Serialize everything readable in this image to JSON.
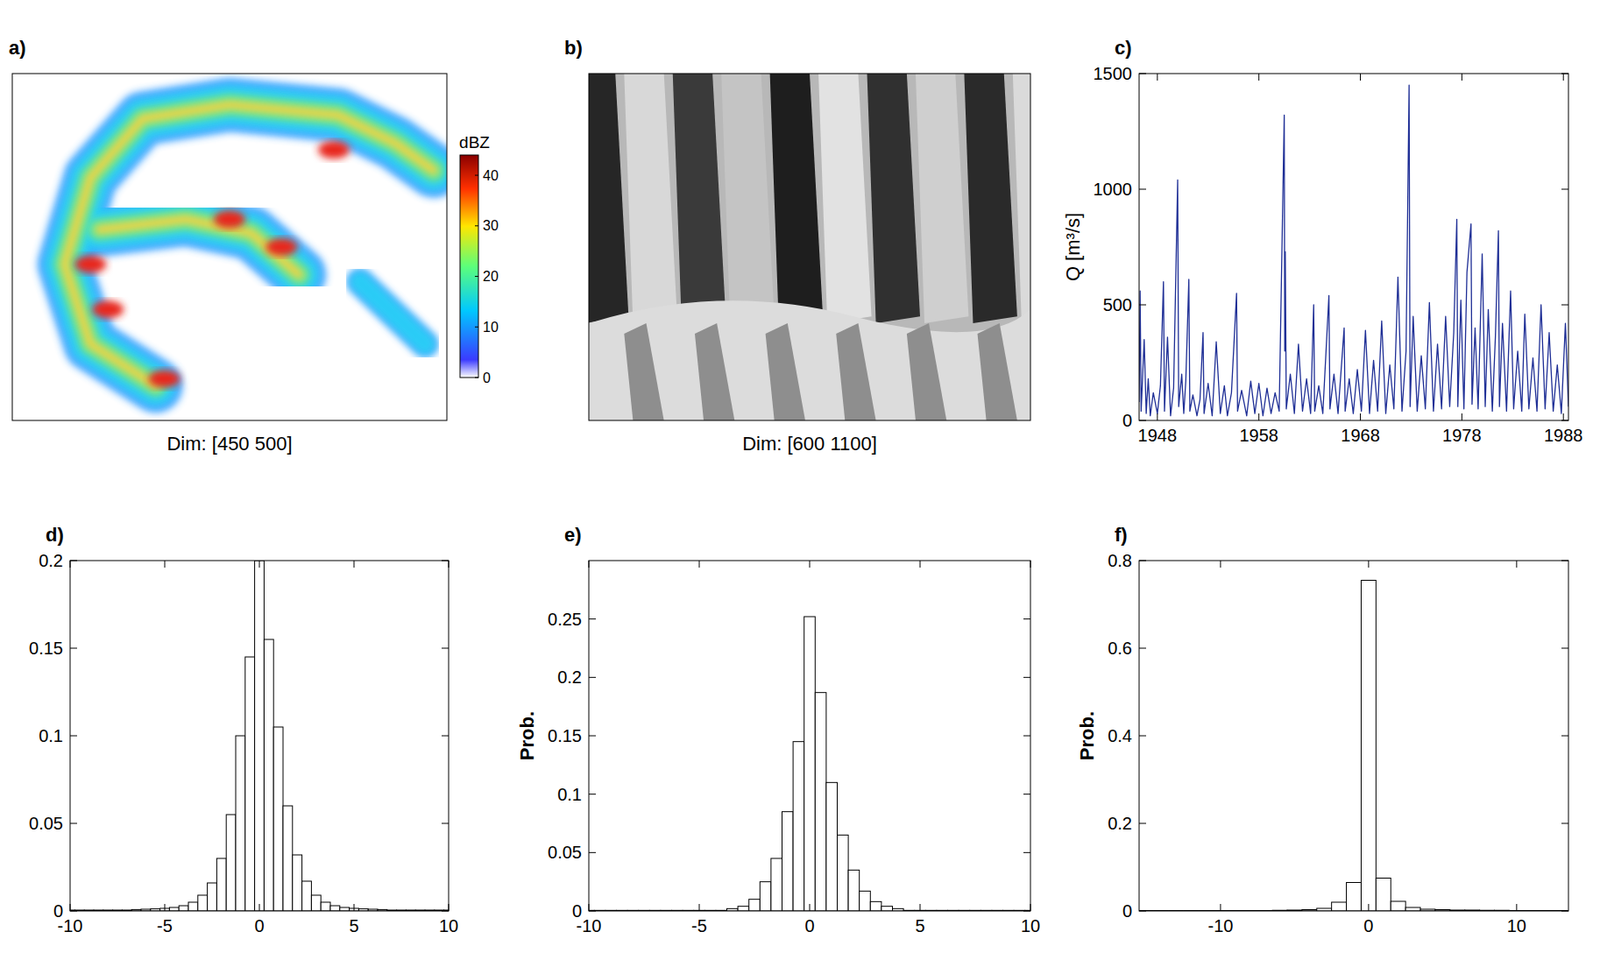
{
  "chart_data": [
    {
      "type": "image",
      "title": "a)",
      "xlabel": "Dim: [450 500]",
      "tick_labels": false,
      "colorbar_label": "dBZ",
      "colorbar_lim": [
        0,
        44
      ],
      "colorbar_ticks": [
        0,
        10,
        20,
        30,
        40
      ]
    },
    {
      "type": "image",
      "title": "b)",
      "xlabel": "Dim: [600 1100]",
      "tick_labels": false
    },
    {
      "type": "line",
      "title": "c)",
      "ylabel": "Q [m³/s]",
      "color": "#1f2f96",
      "x": [
        1946.2,
        1946.3,
        1946.4,
        1946.7,
        1946.9,
        1947.1,
        1947.3,
        1947.6,
        1948.0,
        1948.3,
        1948.6,
        1948.7,
        1949.0,
        1949.3,
        1949.6,
        1950.0,
        1950.1,
        1950.4,
        1950.6,
        1950.8,
        1951.1,
        1951.2,
        1951.5,
        1951.9,
        1952.2,
        1952.5,
        1952.6,
        1953.0,
        1953.4,
        1953.8,
        1954.2,
        1954.6,
        1954.9,
        1955.3,
        1955.8,
        1955.9,
        1956.3,
        1956.8,
        1957.2,
        1957.6,
        1958.0,
        1958.4,
        1958.8,
        1959.2,
        1959.6,
        1960.0,
        1960.5,
        1960.55,
        1960.6,
        1960.7,
        1961.1,
        1961.5,
        1961.9,
        1962.3,
        1962.7,
        1963.1,
        1963.4,
        1963.5,
        1963.9,
        1964.3,
        1964.9,
        1965.0,
        1965.4,
        1965.8,
        1966.4,
        1966.5,
        1966.9,
        1967.3,
        1967.7,
        1968.1,
        1968.5,
        1968.9,
        1969.3,
        1969.7,
        1970.1,
        1970.5,
        1970.9,
        1971.3,
        1971.7,
        1972.1,
        1972.5,
        1972.8,
        1972.9,
        1973.2,
        1973.6,
        1974.0,
        1974.4,
        1974.8,
        1975.2,
        1975.6,
        1976.0,
        1976.4,
        1976.8,
        1977.2,
        1977.5,
        1977.6,
        1977.9,
        1978.2,
        1978.5,
        1978.9,
        1979.0,
        1979.3,
        1979.6,
        1980.0,
        1980.3,
        1980.6,
        1981.0,
        1981.3,
        1981.6,
        1981.7,
        1982.0,
        1982.4,
        1982.8,
        1983.1,
        1983.5,
        1983.9,
        1984.2,
        1984.6,
        1985.0,
        1985.4,
        1985.8,
        1986.2,
        1986.6,
        1987.0,
        1987.4,
        1987.8,
        1988.2,
        1988.5
      ],
      "values": [
        80,
        560,
        40,
        350,
        30,
        180,
        20,
        120,
        30,
        150,
        600,
        40,
        360,
        20,
        140,
        1040,
        60,
        200,
        30,
        170,
        610,
        40,
        110,
        20,
        90,
        380,
        30,
        160,
        20,
        340,
        30,
        150,
        20,
        120,
        550,
        40,
        130,
        20,
        170,
        30,
        160,
        20,
        140,
        30,
        120,
        40,
        1320,
        300,
        730,
        50,
        200,
        30,
        330,
        40,
        180,
        30,
        500,
        40,
        150,
        30,
        540,
        50,
        200,
        30,
        400,
        40,
        180,
        30,
        220,
        40,
        390,
        30,
        260,
        40,
        430,
        30,
        240,
        50,
        620,
        40,
        300,
        1450,
        60,
        450,
        40,
        280,
        50,
        510,
        40,
        330,
        50,
        450,
        60,
        380,
        870,
        60,
        520,
        50,
        640,
        850,
        70,
        400,
        50,
        720,
        60,
        480,
        40,
        360,
        820,
        60,
        420,
        40,
        560,
        50,
        300,
        40,
        460,
        50,
        270,
        40,
        500,
        50,
        380,
        40,
        240,
        30,
        420,
        60
      ],
      "xlim": [
        1946.2,
        1988.5
      ],
      "xticks": [
        1948,
        1958,
        1968,
        1978,
        1988
      ],
      "ylim": [
        0,
        1500
      ],
      "yticks": [
        0,
        500,
        1000,
        1500
      ]
    },
    {
      "type": "histogram",
      "title": "d)",
      "color": "#ffffff",
      "bins": [
        -10.25,
        -9.75,
        -9.25,
        -8.75,
        -8.25,
        -7.75,
        -7.25,
        -6.75,
        -6.25,
        -5.75,
        -5.25,
        -4.75,
        -4.25,
        -3.75,
        -3.25,
        -2.75,
        -2.25,
        -1.75,
        -1.25,
        -0.75,
        -0.25,
        0.25,
        0.75,
        1.25,
        1.75,
        2.25,
        2.75,
        3.25,
        3.75,
        4.25,
        4.75,
        5.25,
        5.75,
        6.25,
        6.75,
        7.25,
        7.75,
        8.25,
        8.75,
        9.25,
        9.75,
        10.25
      ],
      "values": [
        0.0005,
        0.0005,
        0.0005,
        0.0005,
        0.0005,
        0.0005,
        0.0005,
        0.0008,
        0.001,
        0.0012,
        0.0015,
        0.002,
        0.003,
        0.005,
        0.009,
        0.016,
        0.03,
        0.055,
        0.1,
        0.145,
        0.2,
        0.155,
        0.105,
        0.06,
        0.032,
        0.017,
        0.009,
        0.005,
        0.003,
        0.002,
        0.0015,
        0.0012,
        0.001,
        0.0008,
        0.0005,
        0.0005,
        0.0005,
        0.0005,
        0.0005,
        0.0005,
        0.0005
      ],
      "xlim": [
        -10,
        10
      ],
      "xticks": [
        -10,
        -5,
        0,
        5,
        10
      ],
      "ylim": [
        0,
        0.2
      ],
      "yticks": [
        0,
        0.05,
        0.1,
        0.15,
        0.2
      ]
    },
    {
      "type": "histogram",
      "title": "e)",
      "ylabel": "Prob.",
      "color": "#ffffff",
      "bins": [
        -10.25,
        -9.75,
        -9.25,
        -8.75,
        -8.25,
        -7.75,
        -7.25,
        -6.75,
        -6.25,
        -5.75,
        -5.25,
        -4.75,
        -4.25,
        -3.75,
        -3.25,
        -2.75,
        -2.25,
        -1.75,
        -1.25,
        -0.75,
        -0.25,
        0.25,
        0.75,
        1.25,
        1.75,
        2.25,
        2.75,
        3.25,
        3.75,
        4.25,
        4.75,
        5.25,
        5.75,
        6.25,
        6.75,
        7.25,
        7.75,
        8.25,
        8.75,
        9.25,
        9.75,
        10.25
      ],
      "values": [
        0.0005,
        0.0005,
        0.0005,
        0.0005,
        0.0005,
        0.0005,
        0.0005,
        0.0005,
        0.0005,
        0.0005,
        0.0005,
        0.0005,
        0.0005,
        0.002,
        0.004,
        0.01,
        0.025,
        0.045,
        0.085,
        0.145,
        0.252,
        0.187,
        0.11,
        0.065,
        0.035,
        0.017,
        0.008,
        0.004,
        0.002,
        0.0005,
        0.0005,
        0.0005,
        0.0005,
        0.0005,
        0.0005,
        0.0005,
        0.0005,
        0.0005,
        0.0005,
        0.0005,
        0.0005
      ],
      "xlim": [
        -10,
        10
      ],
      "xticks": [
        -10,
        -5,
        0,
        5,
        10
      ],
      "ylim": [
        0,
        0.3
      ],
      "yticks": [
        0,
        0.05,
        0.1,
        0.15,
        0.2,
        0.25
      ]
    },
    {
      "type": "histogram",
      "title": "f)",
      "ylabel": "Prob.",
      "color": "#ffffff",
      "bins": [
        -15.5,
        -14.5,
        -13.5,
        -12.5,
        -11.5,
        -10.5,
        -9.5,
        -8.5,
        -7.5,
        -6.5,
        -5.5,
        -4.5,
        -3.5,
        -2.5,
        -1.5,
        -0.5,
        0.5,
        1.5,
        2.5,
        3.5,
        4.5,
        5.5,
        6.5,
        7.5,
        8.5,
        9.5,
        10.5,
        11.5,
        12.5,
        13.5
      ],
      "values": [
        0.001,
        0.001,
        0.001,
        0.001,
        0.001,
        0.001,
        0.001,
        0.001,
        0.001,
        0.0015,
        0.002,
        0.003,
        0.006,
        0.02,
        0.065,
        0.755,
        0.075,
        0.022,
        0.008,
        0.004,
        0.003,
        0.002,
        0.002,
        0.0015,
        0.0015,
        0.001,
        0.001,
        0.001,
        0.001
      ],
      "xlim": [
        -15.5,
        13.5
      ],
      "xticks": [
        -10,
        0,
        10
      ],
      "ylim": [
        0,
        0.8
      ],
      "yticks": [
        0,
        0.2,
        0.4,
        0.6,
        0.8
      ]
    }
  ]
}
